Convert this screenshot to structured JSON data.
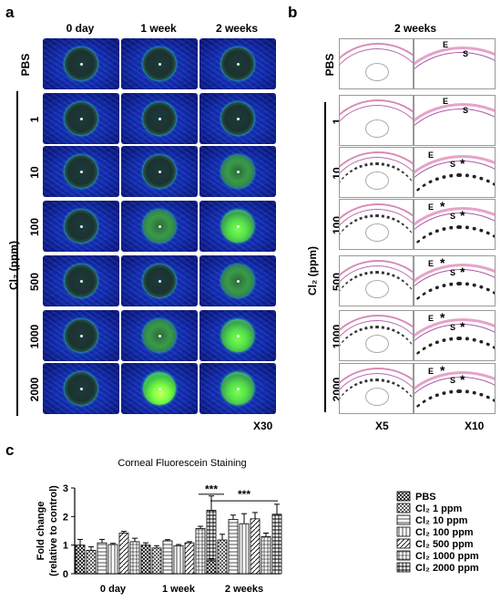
{
  "panel_a": {
    "label": "a",
    "columns": [
      "0 day",
      "1 week",
      "2 weeks"
    ],
    "rows": [
      "PBS",
      "1",
      "10",
      "100",
      "500",
      "1000",
      "2000"
    ],
    "group_label": "Cl₂ (ppm)",
    "magnification": "X30"
  },
  "panel_b": {
    "label": "b",
    "column_header": "2 weeks",
    "rows": [
      "PBS",
      "1",
      "10",
      "100",
      "500",
      "1000",
      "2000"
    ],
    "group_label": "Cl₂ (ppm)",
    "mag_left": "X5",
    "mag_right": "X10",
    "mark_e": "E",
    "mark_s": "S",
    "star": "*"
  },
  "panel_c": {
    "label": "c",
    "significance": "***"
  },
  "chart_data": {
    "type": "bar",
    "title": "Corneal Fluorescein Staining",
    "ylabel": "Fold change (relative to control)",
    "xlabel": "",
    "categories": [
      "0 day",
      "1 week",
      "2 weeks"
    ],
    "ylim": [
      0,
      3
    ],
    "yticks": [
      "0",
      "1",
      "2",
      "3"
    ],
    "series": [
      {
        "name": "PBS",
        "values": [
          1.0,
          1.0,
          0.45
        ],
        "errors": [
          0.2,
          0.08,
          0.08
        ],
        "color": "#ffffff"
      },
      {
        "name": "Cl₂ 1 ppm",
        "values": [
          0.82,
          0.9,
          1.18
        ],
        "errors": [
          0.12,
          0.08,
          0.2
        ],
        "color": "#ffffff"
      },
      {
        "name": "Cl₂ 10 ppm",
        "values": [
          1.08,
          1.15,
          1.9
        ],
        "errors": [
          0.12,
          0.04,
          0.15
        ],
        "color": "#ffffff"
      },
      {
        "name": "Cl₂ 100 ppm",
        "values": [
          1.02,
          0.98,
          1.75
        ],
        "errors": [
          0.04,
          0.04,
          0.35
        ],
        "color": "#ffffff"
      },
      {
        "name": "Cl₂ 500 ppm",
        "values": [
          1.42,
          1.08,
          1.92
        ],
        "errors": [
          0.06,
          0.04,
          0.22
        ],
        "color": "#ffffff"
      },
      {
        "name": "Cl₂ 1000 ppm",
        "values": [
          1.12,
          1.58,
          1.3
        ],
        "errors": [
          0.12,
          0.08,
          0.12
        ],
        "color": "#ffffff"
      },
      {
        "name": "Cl₂ 2000 ppm",
        "values": [
          0.78,
          2.22,
          2.08
        ],
        "errors": [
          0.12,
          0.5,
          0.35
        ],
        "color": "#ffffff"
      }
    ],
    "annotations": [
      {
        "text": "***",
        "category": "1 week"
      },
      {
        "text": "***",
        "category": "2 weeks"
      }
    ],
    "legend": "right"
  }
}
